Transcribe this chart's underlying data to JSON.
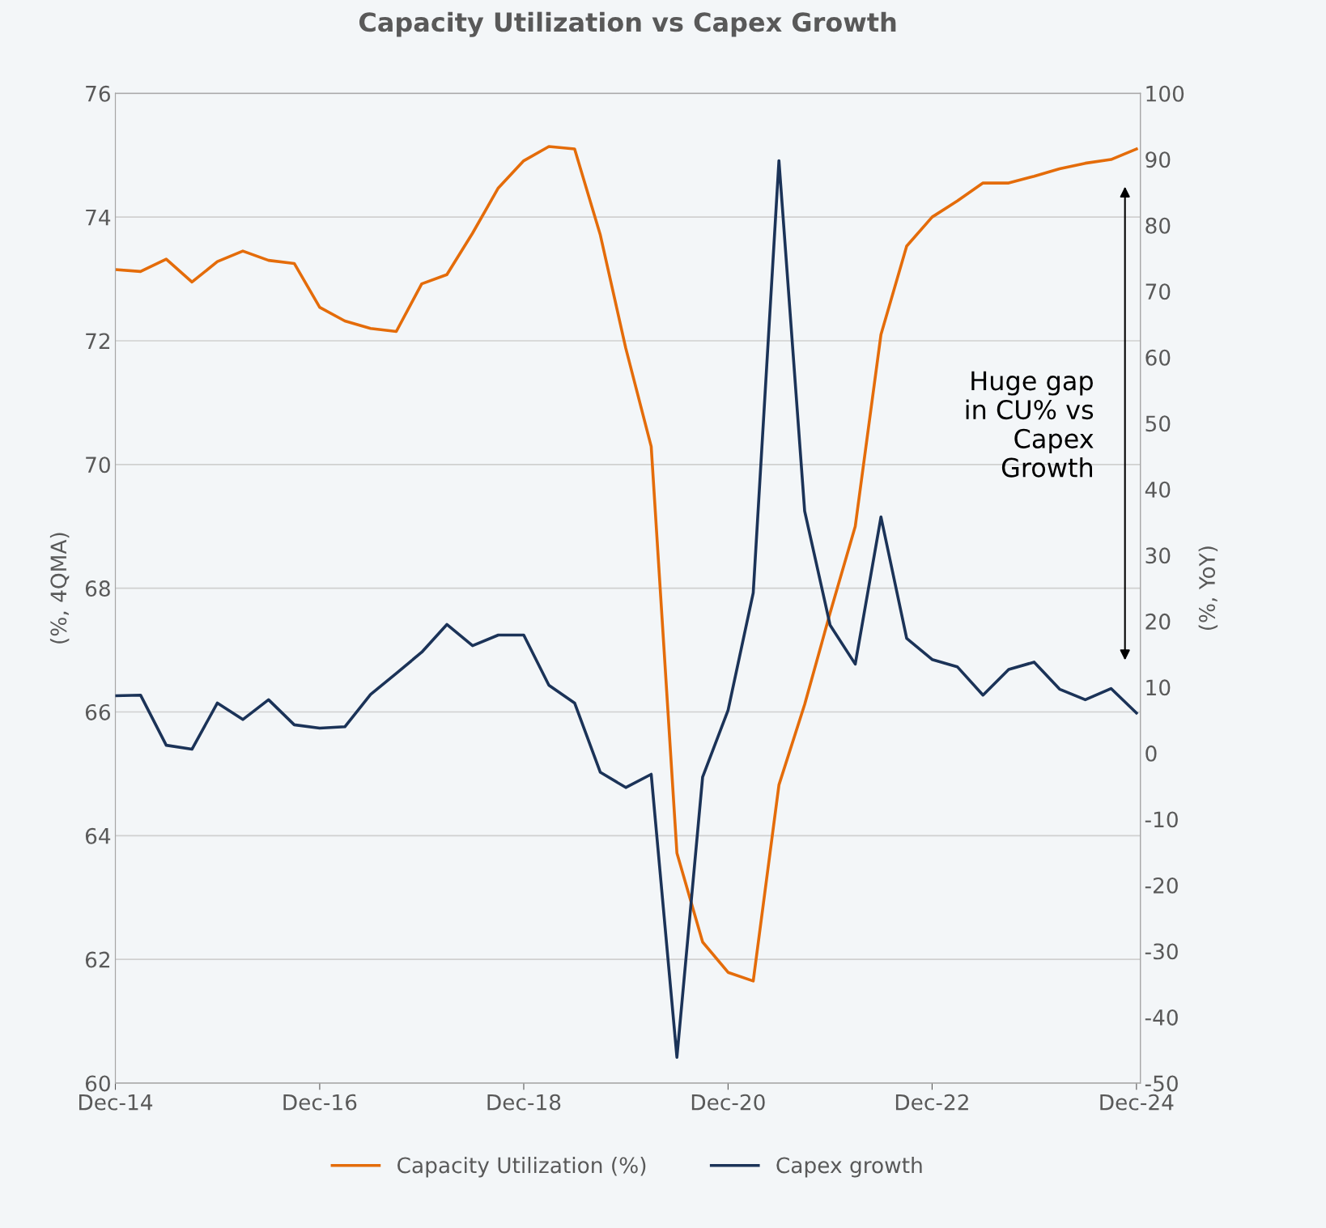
{
  "chart_data": {
    "type": "line",
    "title": "Capacity Utilization vs Capex Growth",
    "ylabel": "(%, 4QMA)",
    "y2label": "(%, YoY)",
    "x": [
      "2014-12",
      "2015-03",
      "2015-06",
      "2015-09",
      "2015-12",
      "2016-03",
      "2016-06",
      "2016-09",
      "2016-12",
      "2017-03",
      "2017-06",
      "2017-09",
      "2017-12",
      "2018-03",
      "2018-06",
      "2018-09",
      "2018-12",
      "2019-03",
      "2019-06",
      "2019-09",
      "2019-12",
      "2020-03",
      "2020-06",
      "2020-09",
      "2020-12",
      "2021-03",
      "2021-06",
      "2021-09",
      "2021-12",
      "2022-03",
      "2022-06",
      "2022-09",
      "2022-12",
      "2023-03",
      "2023-06",
      "2023-09",
      "2023-12",
      "2024-03",
      "2024-06",
      "2024-09",
      "2024-12"
    ],
    "series": [
      {
        "name": "Capacity Utilization (%)",
        "color": "#e46c0a",
        "values": [
          73.15,
          73.12,
          73.32,
          72.95,
          73.28,
          73.45,
          73.3,
          73.25,
          72.54,
          72.32,
          72.2,
          72.15,
          72.92,
          73.07,
          73.74,
          74.47,
          74.91,
          75.14,
          75.1,
          73.71,
          71.88,
          70.29,
          63.72,
          62.28,
          61.79,
          61.65,
          64.82,
          66.12,
          67.6,
          69.0,
          72.1,
          73.53,
          74.0,
          74.26,
          74.55,
          74.55,
          74.66,
          74.78,
          74.87,
          74.93,
          75.1
        ]
      },
      {
        "name": "Capex growth",
        "color": "#1b3358",
        "axis": "y2",
        "values": [
          8.7,
          8.8,
          1.2,
          0.6,
          7.6,
          5.1,
          8.1,
          4.3,
          3.8,
          4.0,
          8.9,
          12.1,
          15.3,
          19.5,
          16.3,
          17.9,
          17.9,
          10.3,
          7.6,
          -2.9,
          -5.2,
          -3.2,
          -46.1,
          -3.6,
          6.5,
          24.3,
          89.8,
          36.7,
          19.4,
          13.5,
          35.8,
          17.4,
          14.2,
          13.1,
          8.8,
          12.7,
          13.8,
          9.7,
          8.1,
          9.8,
          6.1
        ]
      }
    ],
    "xlim": [
      "2014-12",
      "2024-12-15"
    ],
    "xticks": [
      {
        "value": "2014-12",
        "label": "Dec-14"
      },
      {
        "value": "2016-12",
        "label": "Dec-16"
      },
      {
        "value": "2018-12",
        "label": "Dec-18"
      },
      {
        "value": "2020-12",
        "label": "Dec-20"
      },
      {
        "value": "2022-12",
        "label": "Dec-22"
      },
      {
        "value": "2024-12",
        "label": "Dec-24"
      }
    ],
    "ylim": [
      60,
      76
    ],
    "yticks": [
      60,
      62,
      64,
      66,
      68,
      70,
      72,
      74,
      76
    ],
    "y2lim": [
      -50,
      100
    ],
    "y2ticks": [
      -50,
      -40,
      -30,
      -20,
      -10,
      0,
      10,
      20,
      30,
      40,
      50,
      60,
      70,
      80,
      90,
      100
    ],
    "annotations": [
      "Huge gap\nin CU% vs\nCapex\nGrowth"
    ],
    "grid": "y",
    "legend": "bottom",
    "marker": "none",
    "line_style": "solid"
  }
}
